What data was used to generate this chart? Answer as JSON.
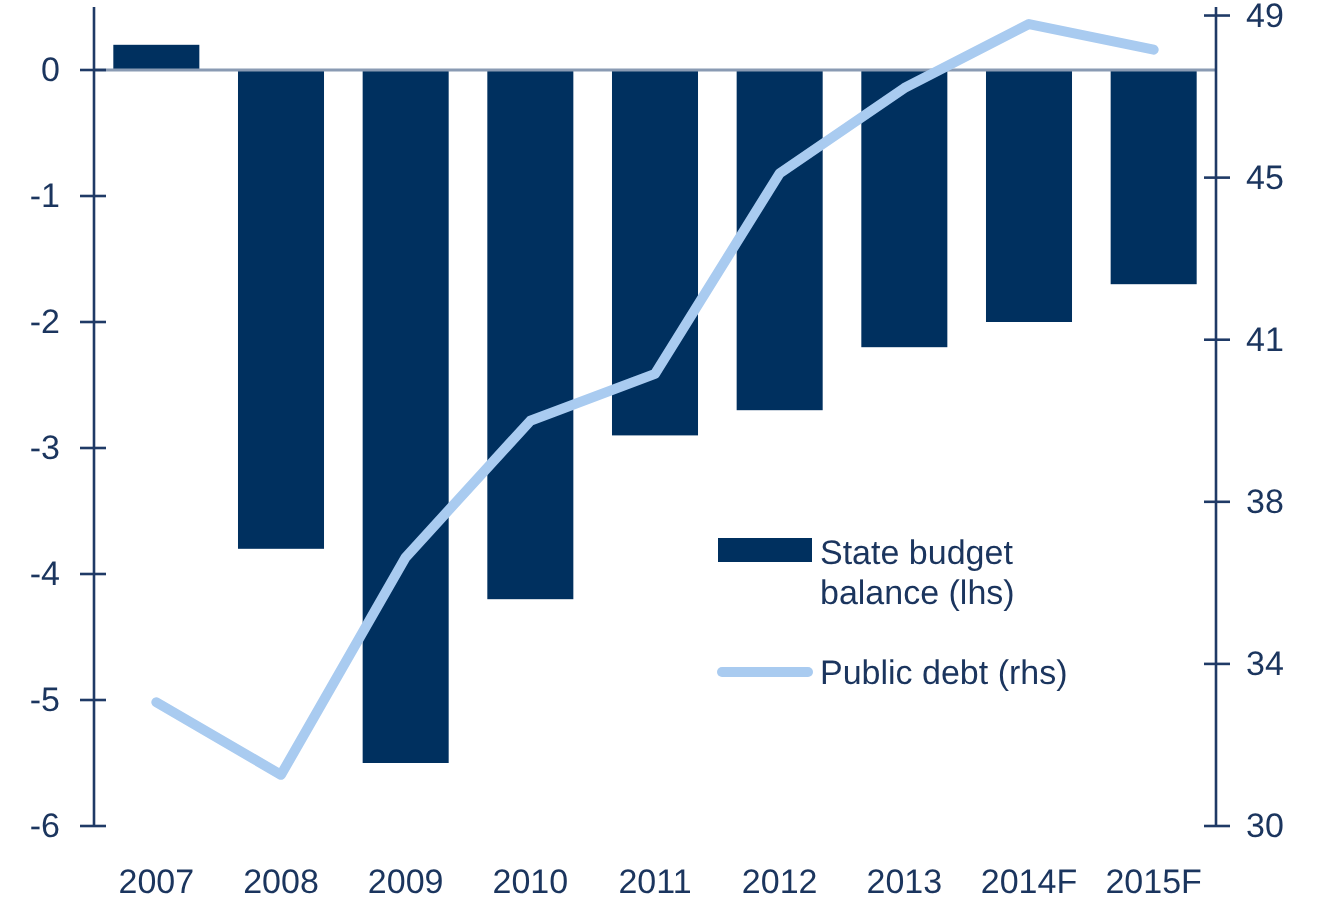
{
  "chart_data": {
    "type": "bar",
    "categories": [
      "2007",
      "2008",
      "2009",
      "2010",
      "2011",
      "2012",
      "2013",
      "2014F",
      "2015F"
    ],
    "series": [
      {
        "name": "State budget balance (lhs)",
        "color": "#00305f",
        "values": [
          0.2,
          -3.8,
          -5.5,
          -4.2,
          -2.9,
          -2.7,
          -2.2,
          -2.0,
          -1.7
        ]
      },
      {
        "name": "Public debt (rhs)",
        "type": "line",
        "axis": "y2",
        "color": "#a9cbf0",
        "values": [
          32.9,
          31.2,
          36.3,
          39.5,
          40.6,
          45.3,
          47.3,
          48.8,
          48.2
        ]
      }
    ],
    "ylim": [
      -6,
      0.5
    ],
    "yticks": [
      -6,
      -5,
      -4,
      -3,
      -2,
      -1,
      0
    ],
    "y2lim": [
      30,
      49.2
    ],
    "y2ticks": [
      30,
      {
        "value": 33.8,
        "label": "34"
      },
      {
        "value": 37.6,
        "label": "38"
      },
      {
        "value": 41.4,
        "label": "41"
      },
      {
        "value": 45.2,
        "label": "45"
      },
      49
    ],
    "ref_lines": [
      {
        "axis": "y",
        "value": 0,
        "color": "#8a9bb3"
      }
    ],
    "legend": "bottom right"
  }
}
